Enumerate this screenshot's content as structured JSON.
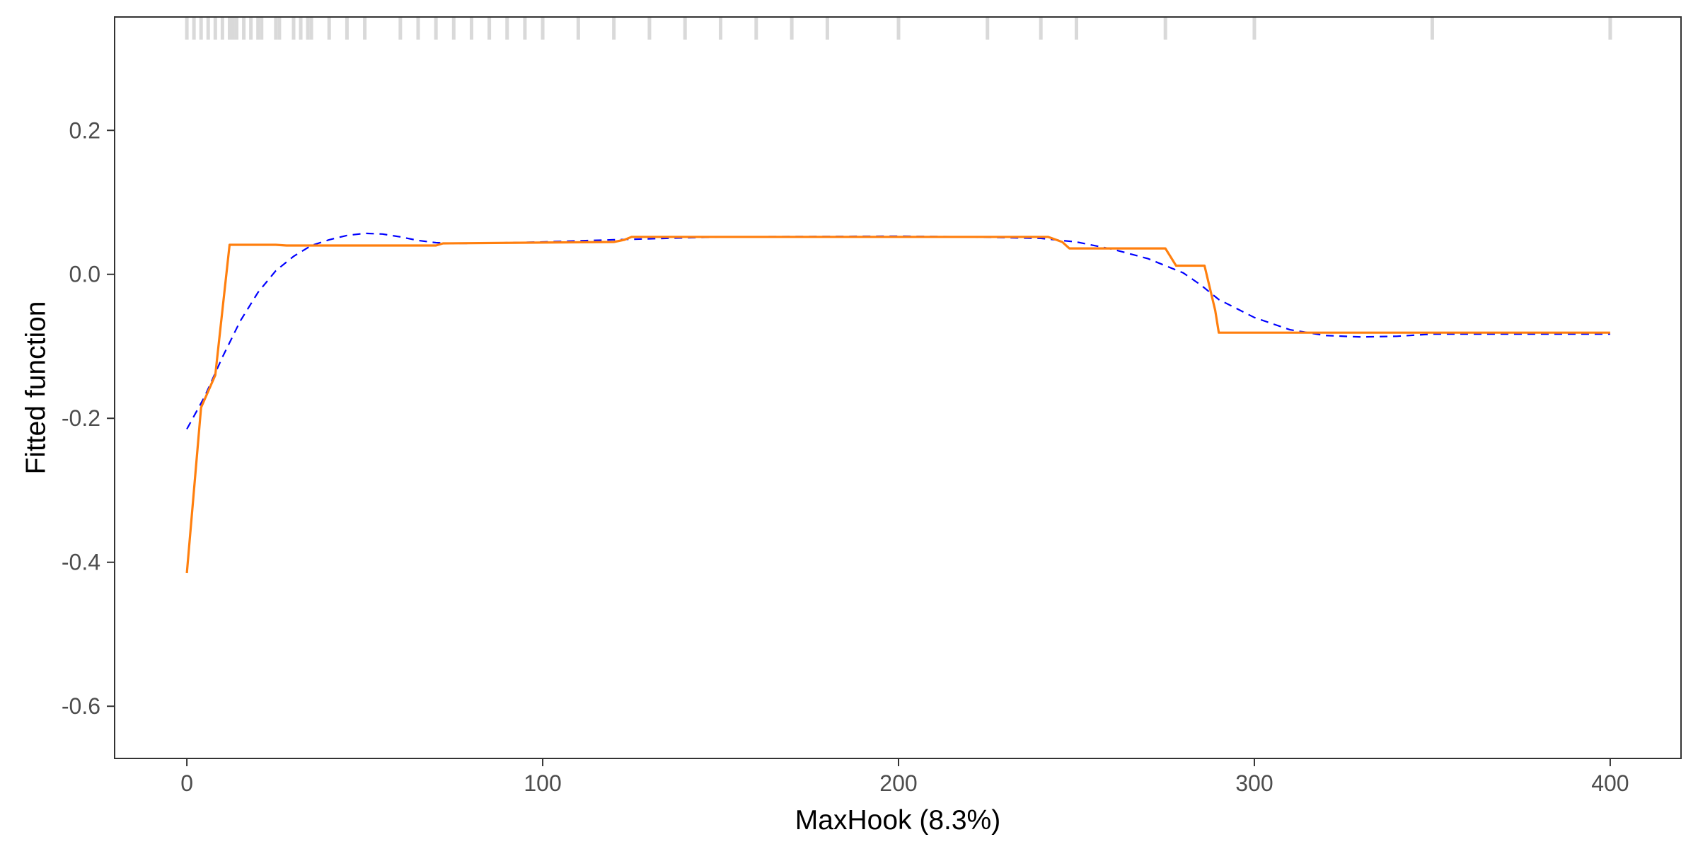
{
  "chart_data": {
    "type": "line",
    "xlabel": "MaxHook  (8.3%)",
    "ylabel": "Fitted function",
    "xlim": [
      -20.3,
      419.9
    ],
    "ylim": [
      -0.6725,
      0.3575
    ],
    "x_ticks": [
      0,
      100,
      200,
      300,
      400
    ],
    "x_tick_labels": [
      "0",
      "100",
      "200",
      "300",
      "400"
    ],
    "y_ticks": [
      0.2,
      0.0,
      -0.2,
      -0.4,
      -0.6
    ],
    "y_tick_labels": [
      "0.2",
      "0.0",
      "-0.2",
      "-0.4",
      "-0.6"
    ],
    "grid": false,
    "frame": true,
    "rug": {
      "color": "#d9d9d9",
      "x": [
        0,
        2,
        4,
        6,
        8,
        10,
        12,
        13,
        14,
        16,
        18,
        20,
        21,
        25,
        26,
        30,
        32,
        34,
        35,
        40,
        45,
        50,
        60,
        65,
        70,
        75,
        80,
        85,
        90,
        95,
        100,
        110,
        120,
        130,
        140,
        150,
        160,
        170,
        180,
        200,
        225,
        240,
        250,
        275,
        300,
        350,
        400
      ]
    },
    "series": [
      {
        "style": "solid",
        "color": "#ff7f0e",
        "x": [
          0,
          4,
          8,
          12,
          25,
          28,
          68,
          70,
          72,
          120,
          123,
          125,
          242,
          246,
          248,
          275,
          278,
          286,
          289,
          290,
          400
        ],
        "y": [
          -0.415,
          -0.185,
          -0.14,
          0.041,
          0.041,
          0.04,
          0.04,
          0.04,
          0.043,
          0.045,
          0.048,
          0.052,
          0.052,
          0.045,
          0.036,
          0.036,
          0.012,
          0.012,
          -0.05,
          -0.081,
          -0.081
        ]
      },
      {
        "style": "dashed",
        "color": "#0000ff",
        "x": [
          0,
          5,
          10,
          15,
          20,
          25,
          30,
          35,
          40,
          45,
          50,
          55,
          60,
          65,
          70,
          75,
          80,
          90,
          100,
          120,
          150,
          200,
          220,
          240,
          250,
          260,
          270,
          280,
          285,
          290,
          300,
          310,
          320,
          330,
          340,
          350,
          400
        ],
        "y": [
          -0.215,
          -0.17,
          -0.115,
          -0.065,
          -0.025,
          0.005,
          0.025,
          0.04,
          0.048,
          0.054,
          0.057,
          0.056,
          0.052,
          0.047,
          0.044,
          0.043,
          0.043,
          0.044,
          0.045,
          0.048,
          0.052,
          0.053,
          0.052,
          0.05,
          0.045,
          0.035,
          0.022,
          0.002,
          -0.015,
          -0.035,
          -0.06,
          -0.077,
          -0.085,
          -0.087,
          -0.086,
          -0.083,
          -0.083
        ]
      }
    ]
  }
}
